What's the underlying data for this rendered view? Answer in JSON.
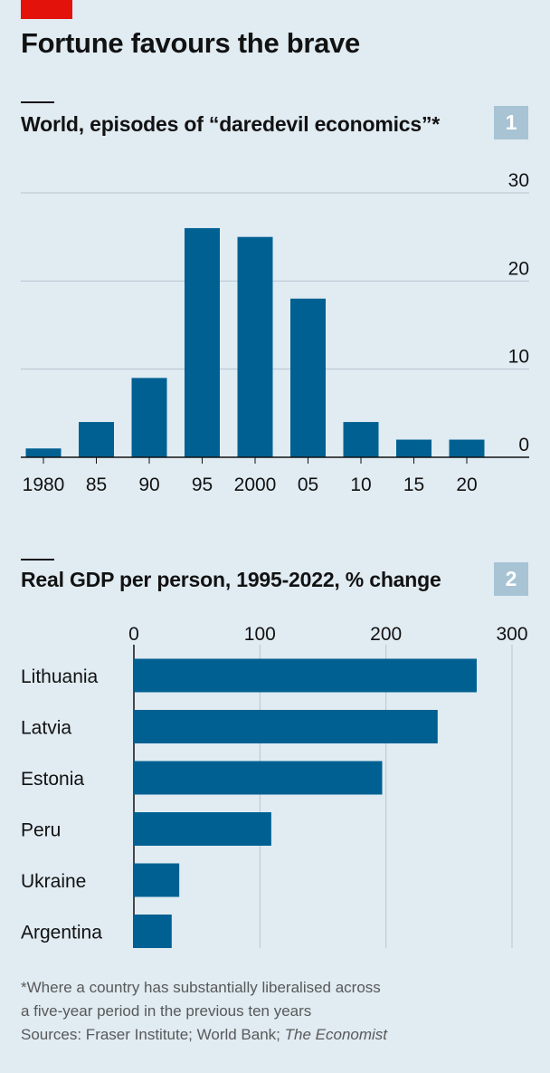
{
  "header": {
    "title": "Fortune favours the brave",
    "accent_color": "#e3120b"
  },
  "colors": {
    "bar": "#006092",
    "background": "#e0ebf2",
    "grid": "#b7c6cf",
    "badge": "#a7c3d4"
  },
  "chart_data": [
    {
      "type": "bar",
      "badge": "1",
      "title": "World, episodes of “daredevil economics”*",
      "x": [
        1980,
        1985,
        1990,
        1995,
        2000,
        2005,
        2010,
        2015,
        2020
      ],
      "categories": [
        "1980",
        "85",
        "90",
        "95",
        "2000",
        "05",
        "10",
        "15",
        "20"
      ],
      "values": [
        1,
        4,
        9,
        26,
        25,
        18,
        4,
        2,
        2
      ],
      "yticks": [
        "0",
        "10",
        "20",
        "30"
      ],
      "ylim": [
        0,
        30
      ],
      "ytick_side": "right",
      "grid": true
    },
    {
      "type": "bar",
      "orientation": "horizontal",
      "badge": "2",
      "title": "Real GDP per person, 1995-2022, % change",
      "categories": [
        "Lithuania",
        "Latvia",
        "Estonia",
        "Peru",
        "Ukraine",
        "Argentina"
      ],
      "values": [
        272,
        241,
        197,
        109,
        36,
        30
      ],
      "xticks": [
        "0",
        "100",
        "200",
        "300"
      ],
      "xlim": [
        0,
        300
      ],
      "xtick_side": "top",
      "grid": true
    }
  ],
  "footnote": {
    "line1": "*Where a country has substantially liberalised across",
    "line2": "a five-year period in the previous ten years",
    "sources_prefix": "Sources: Fraser Institute; World Bank; ",
    "sources_publication": "The Economist"
  }
}
